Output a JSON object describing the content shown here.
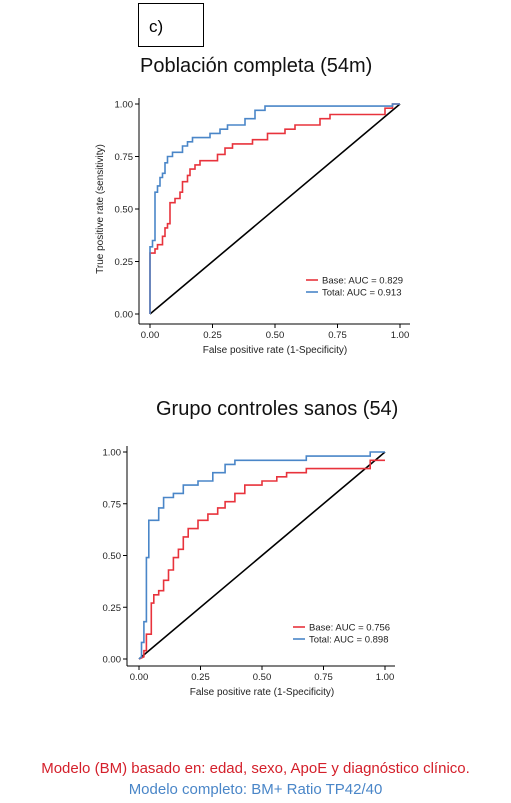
{
  "panel_label": "c)",
  "footnotes": {
    "line1": "Modelo (BM) basado en: edad, sexo, ApoE y diagnóstico clínico.",
    "line2": "Modelo completo: BM+ Ratio TP42/40"
  },
  "colors": {
    "base": "#e8333c",
    "total": "#4a86c8",
    "diagonal": "#000000",
    "footnote_red": "#d4202b",
    "footnote_blue": "#4a86c8"
  },
  "chart_data": [
    {
      "type": "line",
      "title": "Población completa (54m)",
      "xlabel": "False positive rate (1-Specificity)",
      "ylabel": "True positive rate (sensitivity)",
      "xlim": [
        0,
        1
      ],
      "ylim": [
        0,
        1
      ],
      "x_ticks": [
        "0.00",
        "0.25",
        "0.50",
        "0.75",
        "1.00"
      ],
      "y_ticks": [
        "0.00",
        "0.25",
        "0.50",
        "0.75",
        "1.00"
      ],
      "legend_position": "bottom-right",
      "grid": false,
      "series": [
        {
          "name": "Base: AUC = 0.829",
          "color": "#e8333c",
          "points": [
            [
              0,
              0
            ],
            [
              0,
              0.29
            ],
            [
              0.02,
              0.29
            ],
            [
              0.02,
              0.31
            ],
            [
              0.03,
              0.31
            ],
            [
              0.03,
              0.33
            ],
            [
              0.05,
              0.33
            ],
            [
              0.05,
              0.37
            ],
            [
              0.06,
              0.37
            ],
            [
              0.06,
              0.41
            ],
            [
              0.07,
              0.41
            ],
            [
              0.07,
              0.43
            ],
            [
              0.08,
              0.43
            ],
            [
              0.08,
              0.53
            ],
            [
              0.1,
              0.53
            ],
            [
              0.1,
              0.55
            ],
            [
              0.12,
              0.55
            ],
            [
              0.12,
              0.58
            ],
            [
              0.13,
              0.58
            ],
            [
              0.13,
              0.63
            ],
            [
              0.15,
              0.63
            ],
            [
              0.15,
              0.66
            ],
            [
              0.16,
              0.66
            ],
            [
              0.16,
              0.69
            ],
            [
              0.18,
              0.69
            ],
            [
              0.18,
              0.71
            ],
            [
              0.2,
              0.71
            ],
            [
              0.2,
              0.73
            ],
            [
              0.27,
              0.73
            ],
            [
              0.27,
              0.76
            ],
            [
              0.3,
              0.76
            ],
            [
              0.3,
              0.79
            ],
            [
              0.33,
              0.79
            ],
            [
              0.33,
              0.81
            ],
            [
              0.41,
              0.81
            ],
            [
              0.41,
              0.83
            ],
            [
              0.47,
              0.83
            ],
            [
              0.47,
              0.86
            ],
            [
              0.54,
              0.86
            ],
            [
              0.54,
              0.88
            ],
            [
              0.58,
              0.88
            ],
            [
              0.58,
              0.9
            ],
            [
              0.68,
              0.9
            ],
            [
              0.68,
              0.93
            ],
            [
              0.72,
              0.93
            ],
            [
              0.72,
              0.95
            ],
            [
              0.94,
              0.95
            ],
            [
              0.94,
              0.98
            ],
            [
              0.97,
              0.98
            ],
            [
              0.97,
              1.0
            ],
            [
              1.0,
              1.0
            ]
          ]
        },
        {
          "name": "Total: AUC = 0.913",
          "color": "#4a86c8",
          "points": [
            [
              0,
              0
            ],
            [
              0,
              0.32
            ],
            [
              0.01,
              0.32
            ],
            [
              0.01,
              0.35
            ],
            [
              0.02,
              0.35
            ],
            [
              0.02,
              0.58
            ],
            [
              0.03,
              0.58
            ],
            [
              0.03,
              0.61
            ],
            [
              0.04,
              0.61
            ],
            [
              0.04,
              0.65
            ],
            [
              0.05,
              0.65
            ],
            [
              0.05,
              0.67
            ],
            [
              0.06,
              0.67
            ],
            [
              0.06,
              0.72
            ],
            [
              0.07,
              0.72
            ],
            [
              0.07,
              0.75
            ],
            [
              0.09,
              0.75
            ],
            [
              0.09,
              0.77
            ],
            [
              0.13,
              0.77
            ],
            [
              0.13,
              0.8
            ],
            [
              0.15,
              0.8
            ],
            [
              0.15,
              0.82
            ],
            [
              0.17,
              0.82
            ],
            [
              0.17,
              0.84
            ],
            [
              0.24,
              0.84
            ],
            [
              0.24,
              0.86
            ],
            [
              0.28,
              0.86
            ],
            [
              0.28,
              0.88
            ],
            [
              0.31,
              0.88
            ],
            [
              0.31,
              0.9
            ],
            [
              0.38,
              0.9
            ],
            [
              0.38,
              0.93
            ],
            [
              0.42,
              0.93
            ],
            [
              0.42,
              0.97
            ],
            [
              0.46,
              0.97
            ],
            [
              0.46,
              0.99
            ],
            [
              0.97,
              0.99
            ],
            [
              0.97,
              1.0
            ],
            [
              1.0,
              1.0
            ]
          ]
        }
      ]
    },
    {
      "type": "line",
      "title": "Grupo controles sanos (54)",
      "xlabel": "False positive rate (1-Specificity)",
      "ylabel": "",
      "xlim": [
        0,
        1
      ],
      "ylim": [
        0,
        1
      ],
      "x_ticks": [
        "0.00",
        "0.25",
        "0.50",
        "0.75",
        "1.00"
      ],
      "y_ticks": [
        "0.00",
        "0.25",
        "0.50",
        "0.75",
        "1.00"
      ],
      "legend_position": "bottom-right",
      "grid": false,
      "series": [
        {
          "name": "Base: AUC = 0.756",
          "color": "#e8333c",
          "points": [
            [
              0,
              0
            ],
            [
              0.02,
              0.01
            ],
            [
              0.02,
              0.04
            ],
            [
              0.03,
              0.04
            ],
            [
              0.03,
              0.12
            ],
            [
              0.05,
              0.12
            ],
            [
              0.05,
              0.27
            ],
            [
              0.06,
              0.27
            ],
            [
              0.06,
              0.31
            ],
            [
              0.08,
              0.31
            ],
            [
              0.08,
              0.33
            ],
            [
              0.1,
              0.33
            ],
            [
              0.1,
              0.38
            ],
            [
              0.12,
              0.38
            ],
            [
              0.12,
              0.43
            ],
            [
              0.14,
              0.43
            ],
            [
              0.14,
              0.49
            ],
            [
              0.16,
              0.49
            ],
            [
              0.16,
              0.53
            ],
            [
              0.18,
              0.53
            ],
            [
              0.18,
              0.59
            ],
            [
              0.2,
              0.59
            ],
            [
              0.2,
              0.63
            ],
            [
              0.24,
              0.63
            ],
            [
              0.24,
              0.67
            ],
            [
              0.28,
              0.67
            ],
            [
              0.28,
              0.7
            ],
            [
              0.32,
              0.7
            ],
            [
              0.32,
              0.73
            ],
            [
              0.35,
              0.73
            ],
            [
              0.35,
              0.76
            ],
            [
              0.39,
              0.76
            ],
            [
              0.39,
              0.8
            ],
            [
              0.43,
              0.8
            ],
            [
              0.43,
              0.84
            ],
            [
              0.5,
              0.84
            ],
            [
              0.5,
              0.86
            ],
            [
              0.56,
              0.86
            ],
            [
              0.56,
              0.88
            ],
            [
              0.6,
              0.88
            ],
            [
              0.6,
              0.9
            ],
            [
              0.68,
              0.9
            ],
            [
              0.68,
              0.92
            ],
            [
              0.94,
              0.92
            ],
            [
              0.94,
              0.96
            ],
            [
              1.0,
              0.96
            ]
          ]
        },
        {
          "name": "Total: AUC = 0.898",
          "color": "#4a86c8",
          "points": [
            [
              0,
              0
            ],
            [
              0.01,
              0.01
            ],
            [
              0.01,
              0.08
            ],
            [
              0.02,
              0.08
            ],
            [
              0.02,
              0.18
            ],
            [
              0.03,
              0.18
            ],
            [
              0.03,
              0.49
            ],
            [
              0.04,
              0.49
            ],
            [
              0.04,
              0.67
            ],
            [
              0.08,
              0.67
            ],
            [
              0.08,
              0.73
            ],
            [
              0.1,
              0.73
            ],
            [
              0.1,
              0.78
            ],
            [
              0.14,
              0.78
            ],
            [
              0.14,
              0.8
            ],
            [
              0.18,
              0.8
            ],
            [
              0.18,
              0.84
            ],
            [
              0.24,
              0.84
            ],
            [
              0.24,
              0.86
            ],
            [
              0.3,
              0.86
            ],
            [
              0.3,
              0.9
            ],
            [
              0.35,
              0.9
            ],
            [
              0.35,
              0.94
            ],
            [
              0.39,
              0.94
            ],
            [
              0.39,
              0.96
            ],
            [
              0.68,
              0.96
            ],
            [
              0.68,
              0.98
            ],
            [
              0.94,
              0.98
            ],
            [
              0.94,
              1.0
            ],
            [
              1.0,
              1.0
            ]
          ]
        }
      ]
    }
  ]
}
